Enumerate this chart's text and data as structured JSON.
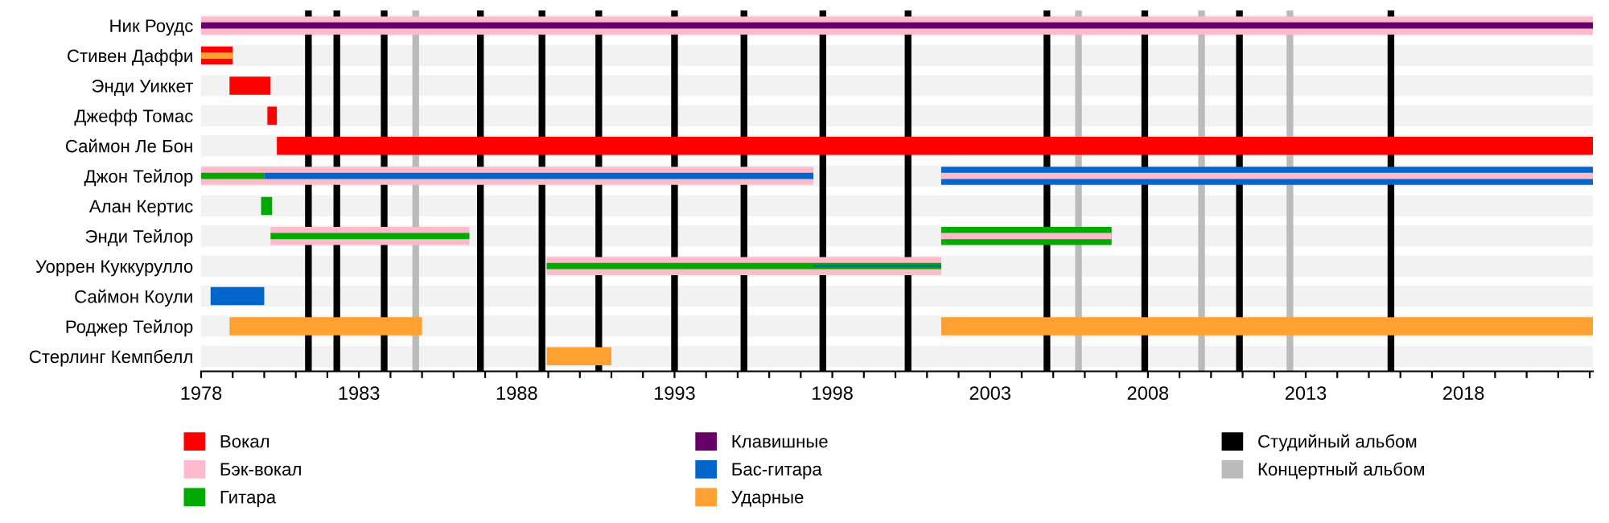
{
  "chart_data": {
    "type": "bar",
    "orientation": "horizontal",
    "categories": [
      "Ник Роудс",
      "Стивен Даффи",
      "Энди Уиккет",
      "Джефф Томас",
      "Саймон Ле Бон",
      "Джон Тейлор",
      "Алан Кертис",
      "Энди Тейлор",
      "Уоррен Куккурулло",
      "Саймон Коули",
      "Роджер Тейлор",
      "Стерлинг Кемпбелл"
    ],
    "series": [
      {
        "name": "Вокал",
        "color": "#ff0000",
        "values": [
          null,
          1.0,
          1.3,
          0.3,
          41.7,
          null,
          null,
          null,
          null,
          null,
          null,
          null
        ],
        "base": [
          null,
          1978,
          1978.9,
          1980.1,
          1980.4,
          null,
          null,
          null,
          null,
          null,
          null,
          null
        ]
      },
      {
        "name": "Бэк-вокал",
        "color": "#ffbbcc",
        "values": [
          44.1,
          null,
          null,
          null,
          null,
          19.4,
          null,
          6.3,
          12.5,
          null,
          null,
          null
        ],
        "base": [
          1978,
          null,
          null,
          null,
          null,
          1978,
          null,
          1980.2,
          1988.95,
          null,
          null,
          null
        ]
      },
      {
        "name": "Гитара",
        "color": "#00aa00",
        "values": [
          null,
          null,
          null,
          null,
          null,
          2.0,
          0.35,
          6.3,
          12.5,
          null,
          null,
          null
        ],
        "base": [
          null,
          null,
          null,
          null,
          null,
          1978,
          1979.9,
          1980.2,
          1988.95,
          null,
          null,
          null
        ]
      },
      {
        "name": "Клавишные",
        "color": "#660066",
        "values": [
          44.1,
          null,
          null,
          null,
          null,
          null,
          null,
          null,
          null,
          null,
          null,
          null
        ],
        "base": [
          1978,
          null,
          null,
          null,
          null,
          null,
          null,
          null,
          null,
          null,
          null,
          null
        ]
      },
      {
        "name": "Бас-гитара",
        "color": "#0066cc",
        "values": [
          null,
          null,
          null,
          null,
          null,
          17.4,
          null,
          null,
          4.05,
          1.7,
          null,
          null
        ],
        "base": [
          null,
          null,
          null,
          null,
          null,
          1980.0,
          null,
          null,
          1997.4,
          1978.3,
          null,
          null
        ]
      },
      {
        "name": "Ударные",
        "color": "#ffa033",
        "values": [
          null,
          1.0,
          null,
          null,
          null,
          null,
          null,
          null,
          null,
          null,
          6.1,
          2.05
        ],
        "base": [
          null,
          1978,
          null,
          null,
          null,
          null,
          null,
          null,
          null,
          null,
          1978.9,
          1988.95
        ]
      },
      {
        "color": "#00aa00",
        "values": [
          null,
          null,
          null,
          null,
          null,
          null,
          null,
          5.4,
          null,
          null,
          null,
          null
        ],
        "base": [
          null,
          null,
          null,
          null,
          null,
          null,
          null,
          2001.45,
          null,
          null,
          null,
          null
        ]
      },
      {
        "color": "#0066cc",
        "values": [
          null,
          null,
          null,
          null,
          null,
          20.65,
          null,
          null,
          null,
          null,
          null,
          null
        ],
        "base": [
          null,
          null,
          null,
          null,
          null,
          2001.45,
          null,
          null,
          null,
          null,
          null,
          null
        ]
      },
      {
        "color": "#ffa033",
        "values": [
          null,
          null,
          null,
          null,
          null,
          null,
          null,
          null,
          null,
          null,
          20.65,
          null
        ],
        "base": [
          null,
          null,
          null,
          null,
          null,
          null,
          null,
          null,
          null,
          null,
          2001.45,
          null
        ]
      },
      {
        "color": "#ffbbcc",
        "values": [
          null,
          null,
          null,
          null,
          null,
          20.65,
          null,
          5.4,
          null,
          null,
          null,
          null
        ],
        "base": [
          null,
          null,
          null,
          null,
          null,
          2001.45,
          null,
          2001.45,
          null,
          null,
          null,
          null
        ]
      }
    ],
    "xlim": [
      1978,
      2022.1
    ],
    "xticks": [
      1978,
      {
        "value": 1979,
        "label": null
      },
      {
        "value": 1980,
        "label": null
      },
      {
        "value": 1981,
        "label": null
      },
      {
        "value": 1982,
        "label": null
      },
      1983,
      {
        "value": 1984,
        "label": null
      },
      {
        "value": 1985,
        "label": null
      },
      {
        "value": 1986,
        "label": null
      },
      {
        "value": 1987,
        "label": null
      },
      1988,
      {
        "value": 1989,
        "label": null
      },
      {
        "value": 1990,
        "label": null
      },
      {
        "value": 1991,
        "label": null
      },
      {
        "value": 1992,
        "label": null
      },
      1993,
      {
        "value": 1994,
        "label": null
      },
      {
        "value": 1995,
        "label": null
      },
      {
        "value": 1996,
        "label": null
      },
      {
        "value": 1997,
        "label": null
      },
      1998,
      {
        "value": 1999,
        "label": null
      },
      {
        "value": 2000,
        "label": null
      },
      {
        "value": 2001,
        "label": null
      },
      {
        "value": 2002,
        "label": null
      },
      2003,
      {
        "value": 2004,
        "label": null
      },
      {
        "value": 2005,
        "label": null
      },
      {
        "value": 2006,
        "label": null
      },
      {
        "value": 2007,
        "label": null
      },
      2008,
      {
        "value": 2009,
        "label": null
      },
      {
        "value": 2010,
        "label": null
      },
      {
        "value": 2011,
        "label": null
      },
      {
        "value": 2012,
        "label": null
      },
      2013,
      {
        "value": 2014,
        "label": null
      },
      {
        "value": 2015,
        "label": null
      },
      {
        "value": 2016,
        "label": null
      },
      {
        "value": 2017,
        "label": null
      },
      2018,
      {
        "value": 2019,
        "label": null
      },
      {
        "value": 2020,
        "label": null
      },
      {
        "value": 2021,
        "label": null
      },
      {
        "value": 2022,
        "label": null
      }
    ],
    "ref_lines": [
      {
        "axis": "x",
        "value": 1981.4,
        "color": "#000000",
        "label": "Студийный альбом"
      },
      {
        "axis": "x",
        "value": 1982.3,
        "color": "#000000"
      },
      {
        "axis": "x",
        "value": 1983.8,
        "color": "#000000"
      },
      {
        "axis": "x",
        "value": 1986.85,
        "color": "#000000"
      },
      {
        "axis": "x",
        "value": 1988.8,
        "color": "#000000"
      },
      {
        "axis": "x",
        "value": 1990.6,
        "color": "#000000"
      },
      {
        "axis": "x",
        "value": 1993.0,
        "color": "#000000"
      },
      {
        "axis": "x",
        "value": 1995.2,
        "color": "#000000"
      },
      {
        "axis": "x",
        "value": 1997.7,
        "color": "#000000"
      },
      {
        "axis": "x",
        "value": 2000.4,
        "color": "#000000"
      },
      {
        "axis": "x",
        "value": 2004.8,
        "color": "#000000"
      },
      {
        "axis": "x",
        "value": 2007.9,
        "color": "#000000"
      },
      {
        "axis": "x",
        "value": 2010.9,
        "color": "#000000"
      },
      {
        "axis": "x",
        "value": 2015.7,
        "color": "#000000"
      },
      {
        "axis": "x",
        "value": 1984.8,
        "color": "#bbbbbb",
        "label": "Концертный альбом"
      },
      {
        "axis": "x",
        "value": 2005.8,
        "color": "#bbbbbb"
      },
      {
        "axis": "x",
        "value": 2009.7,
        "color": "#bbbbbb"
      },
      {
        "axis": "x",
        "value": 2012.5,
        "color": "#bbbbbb"
      }
    ],
    "grid": false,
    "legend": "bottom"
  }
}
